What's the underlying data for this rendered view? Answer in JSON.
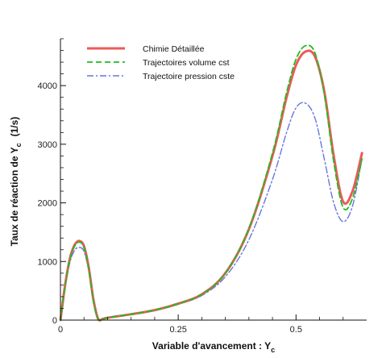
{
  "chart_data": {
    "type": "line",
    "title": "",
    "xlabel": "Variable d'avancement : Y",
    "xlabel_sub": "c",
    "ylabel": "Taux de réaction de Y",
    "ylabel_sub": "c",
    "ylabel_unit": "(1/s)",
    "xlim": [
      0,
      0.65
    ],
    "ylim": [
      0,
      4800
    ],
    "x_ticks": [
      0,
      0.25,
      0.5
    ],
    "x_tick_labels": [
      "0",
      "0.25",
      "0.5"
    ],
    "y_ticks": [
      0,
      1000,
      2000,
      3000,
      4000
    ],
    "y_tick_labels": [
      "0",
      "1000",
      "2000",
      "3000",
      "4000"
    ],
    "grid": false,
    "legend_position": "top-left",
    "series": [
      {
        "name": "Chimie Détaillée",
        "color": "#ee5a5a",
        "style": "solid",
        "x": [
          0,
          0.01,
          0.02,
          0.03,
          0.04,
          0.05,
          0.06,
          0.07,
          0.08,
          0.09,
          0.1,
          0.15,
          0.2,
          0.25,
          0.3,
          0.35,
          0.4,
          0.45,
          0.48,
          0.5,
          0.52,
          0.54,
          0.56,
          0.58,
          0.6,
          0.62,
          0.64
        ],
        "y": [
          0,
          600,
          1050,
          1280,
          1350,
          1260,
          900,
          350,
          20,
          20,
          40,
          100,
          170,
          280,
          440,
          800,
          1550,
          2800,
          3800,
          4350,
          4580,
          4500,
          3900,
          2800,
          2020,
          2200,
          2850
        ]
      },
      {
        "name": "Trajectoires volume cst",
        "color": "#22bb22",
        "style": "dashed",
        "x": [
          0,
          0.01,
          0.02,
          0.03,
          0.04,
          0.05,
          0.06,
          0.07,
          0.08,
          0.09,
          0.1,
          0.15,
          0.2,
          0.25,
          0.3,
          0.35,
          0.4,
          0.45,
          0.48,
          0.5,
          0.52,
          0.54,
          0.56,
          0.58,
          0.6,
          0.62,
          0.64
        ],
        "y": [
          0,
          580,
          1030,
          1260,
          1330,
          1240,
          880,
          330,
          20,
          20,
          40,
          100,
          170,
          280,
          440,
          800,
          1560,
          2850,
          3880,
          4450,
          4680,
          4560,
          3850,
          2700,
          1920,
          2080,
          2750
        ]
      },
      {
        "name": "Trajectoire pression cste",
        "color": "#6677dd",
        "style": "dashdot",
        "x": [
          0,
          0.01,
          0.02,
          0.03,
          0.04,
          0.05,
          0.06,
          0.07,
          0.08,
          0.09,
          0.1,
          0.15,
          0.2,
          0.25,
          0.3,
          0.35,
          0.4,
          0.45,
          0.48,
          0.5,
          0.52,
          0.54,
          0.56,
          0.58,
          0.6,
          0.62,
          0.64
        ],
        "y": [
          0,
          550,
          980,
          1190,
          1240,
          1170,
          840,
          300,
          20,
          20,
          40,
          100,
          170,
          270,
          420,
          740,
          1370,
          2400,
          3200,
          3620,
          3700,
          3450,
          2750,
          2000,
          1680,
          1950,
          2750
        ]
      }
    ]
  }
}
